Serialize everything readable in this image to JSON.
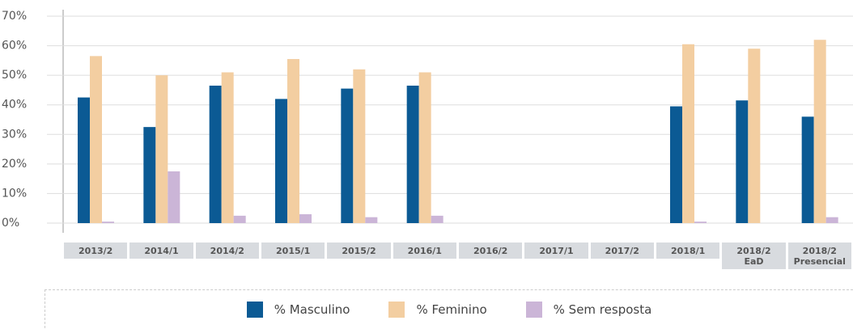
{
  "chart_data": {
    "type": "bar",
    "categories": [
      "2013/2",
      "2014/1",
      "2014/2",
      "2015/1",
      "2015/2",
      "2016/1",
      "2016/2",
      "2017/1",
      "2017/2",
      "2018/1",
      "2018/2\nEaD",
      "2018/2\nPresencial"
    ],
    "series": [
      {
        "name": "% Masculino",
        "color": "#0b5a94",
        "values": [
          42.5,
          32.5,
          46.5,
          42,
          45.5,
          46.5,
          null,
          null,
          null,
          39.5,
          41.5,
          36
        ]
      },
      {
        "name": "% Feminino",
        "color": "#f3cea1",
        "values": [
          56.5,
          50,
          51,
          55.5,
          52,
          51,
          null,
          null,
          null,
          60.5,
          59,
          62
        ]
      },
      {
        "name": "% Sem resposta",
        "color": "#cbb5d7",
        "values": [
          0.5,
          17.5,
          2.5,
          3,
          2,
          2.5,
          null,
          null,
          null,
          0.5,
          0,
          2
        ]
      }
    ],
    "ylim": [
      0,
      70
    ],
    "yticks": [
      {
        "value": 0,
        "label": "0%"
      },
      {
        "value": 10,
        "label": "10%"
      },
      {
        "value": 20,
        "label": "20%"
      },
      {
        "value": 30,
        "label": "30%"
      },
      {
        "value": 40,
        "label": "40%"
      },
      {
        "value": 50,
        "label": "50%"
      },
      {
        "value": 60,
        "label": "60%"
      },
      {
        "value": 70,
        "label": "70%"
      }
    ],
    "grid": true
  }
}
